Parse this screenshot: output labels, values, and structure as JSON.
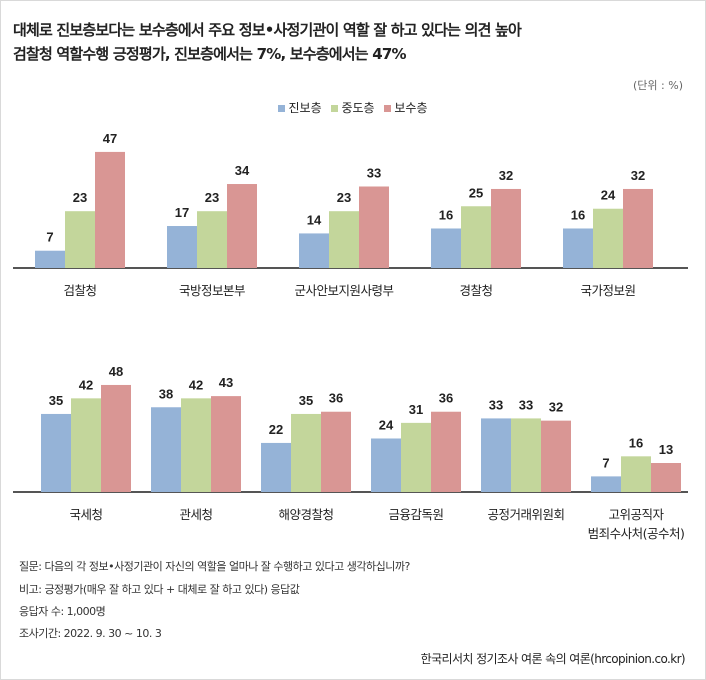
{
  "title_line1": "대체로 진보층보다는 보수층에서 주요 정보•사정기관이 역할 잘 하고 있다는 의견 높아",
  "title_line2": "검찰청 역할수행 긍정평가, 진보층에서는 7%, 보수층에서는 47%",
  "unit": "(단위 : %)",
  "colors": {
    "진보층": "#95b3d7",
    "중도층": "#c3d69b",
    "보수층": "#d99694"
  },
  "notes": {
    "question": "질문:  다음의 각 정보•사정기관이 자신의 역할을 얼마나 잘 수행하고 있다고 생각하십니까?",
    "remark": "비고: 긍정평가(매우 잘 하고 있다 + 대체로 잘 하고 있다) 응답값",
    "respondents": "응답자 수: 1,000명",
    "period": "조사기간: 2022. 9. 30 ~ 10. 3"
  },
  "source": "한국리서치 정기조사 여론 속의 여론(hrcopinion.co.kr)",
  "chart_data": [
    {
      "type": "bar",
      "legend": [
        "진보층",
        "중도층",
        "보수층"
      ],
      "legend_placement": "top-center",
      "categories": [
        "검찰청",
        "국방정보본부",
        "군사안보지원사령부",
        "경찰청",
        "국가정보원"
      ],
      "series": [
        {
          "name": "진보층",
          "values": [
            7,
            17,
            14,
            16,
            16
          ]
        },
        {
          "name": "중도층",
          "values": [
            23,
            23,
            23,
            25,
            24
          ]
        },
        {
          "name": "보수층",
          "values": [
            47,
            34,
            33,
            32,
            32
          ]
        }
      ],
      "ylim": [
        0,
        50
      ]
    },
    {
      "type": "bar",
      "categories": [
        "국세청",
        "관세청",
        "해양경찰청",
        "금융감독원",
        "공정거래위원회",
        "고위공직자\n범죄수사처(공수처)"
      ],
      "series": [
        {
          "name": "진보층",
          "values": [
            35,
            38,
            22,
            24,
            33,
            7
          ]
        },
        {
          "name": "중도층",
          "values": [
            42,
            42,
            35,
            31,
            33,
            16
          ]
        },
        {
          "name": "보수층",
          "values": [
            48,
            43,
            36,
            36,
            32,
            13
          ]
        }
      ],
      "ylim": [
        0,
        50
      ]
    }
  ]
}
